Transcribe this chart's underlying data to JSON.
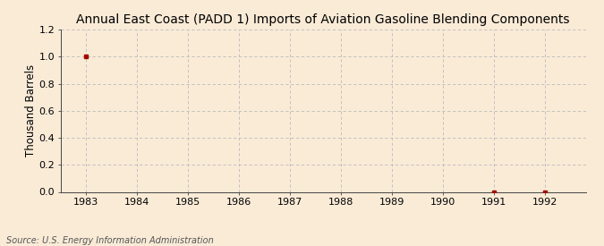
{
  "title": "Annual East Coast (PADD 1) Imports of Aviation Gasoline Blending Components",
  "ylabel": "Thousand Barrels",
  "source": "Source: U.S. Energy Information Administration",
  "x_data": [
    1983,
    1991,
    1992
  ],
  "y_data": [
    1.0,
    0.0,
    0.0
  ],
  "xlim": [
    1982.5,
    1992.8
  ],
  "ylim": [
    0.0,
    1.2
  ],
  "yticks": [
    0.0,
    0.2,
    0.4,
    0.6,
    0.8,
    1.0,
    1.2
  ],
  "xticks": [
    1983,
    1984,
    1985,
    1986,
    1987,
    1988,
    1989,
    1990,
    1991,
    1992
  ],
  "marker_color": "#aa0000",
  "grid_color": "#bbbbbb",
  "background_color": "#faebd7",
  "title_fontsize": 10,
  "label_fontsize": 8.5,
  "tick_fontsize": 8,
  "source_fontsize": 7
}
